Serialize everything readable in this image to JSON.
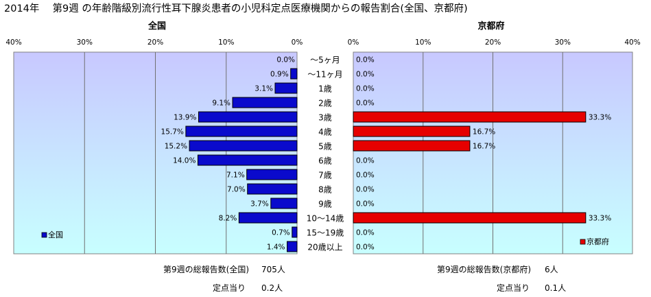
{
  "title": "2014年　 第9週 の年齢階級別流行性耳下腺炎患者の小児科定点医療機関からの報告割合(全国、京都府)",
  "colors": {
    "national_bar": "#0a0acc",
    "kyoto_bar": "#e60000",
    "plot_top": "#c8c8ff",
    "plot_bottom": "#c8ffff"
  },
  "chart_data": [
    {
      "type": "bar",
      "orientation": "horizontal",
      "direction": "right-to-left",
      "panel_title": "全国",
      "legend": "全国",
      "legend_placement": "bottom-left",
      "xlim": [
        0,
        40
      ],
      "ticks": [
        "40%",
        "30%",
        "20%",
        "10%",
        "0%"
      ],
      "grid": true,
      "categories": [
        "～5ヶ月",
        "～11ヶ月",
        "1歳",
        "2歳",
        "3歳",
        "4歳",
        "5歳",
        "6歳",
        "7歳",
        "8歳",
        "9歳",
        "10～14歳",
        "15～19歳",
        "20歳以上"
      ],
      "values": [
        0.0,
        0.9,
        3.1,
        9.1,
        13.9,
        15.7,
        15.2,
        14.0,
        7.1,
        7.0,
        3.7,
        8.2,
        0.7,
        1.4
      ],
      "labels": [
        "0.0%",
        "0.9%",
        "3.1%",
        "9.1%",
        "13.9%",
        "15.7%",
        "15.2%",
        "14.0%",
        "7.1%",
        "7.0%",
        "3.7%",
        "8.2%",
        "0.7%",
        "1.4%"
      ]
    },
    {
      "type": "bar",
      "orientation": "horizontal",
      "direction": "left-to-right",
      "panel_title": "京都府",
      "legend": "京都府",
      "legend_placement": "bottom-right",
      "xlim": [
        0,
        40
      ],
      "ticks": [
        "0%",
        "10%",
        "20%",
        "30%",
        "40%"
      ],
      "grid": true,
      "categories": [
        "～5ヶ月",
        "～11ヶ月",
        "1歳",
        "2歳",
        "3歳",
        "4歳",
        "5歳",
        "6歳",
        "7歳",
        "8歳",
        "9歳",
        "10～14歳",
        "15～19歳",
        "20歳以上"
      ],
      "values": [
        0.0,
        0.0,
        0.0,
        0.0,
        33.3,
        16.7,
        16.7,
        0.0,
        0.0,
        0.0,
        0.0,
        33.3,
        0.0,
        0.0
      ],
      "labels": [
        "0.0%",
        "0.0%",
        "0.0%",
        "0.0%",
        "33.3%",
        "16.7%",
        "16.7%",
        "0.0%",
        "0.0%",
        "0.0%",
        "0.0%",
        "33.3%",
        "0.0%",
        "0.0%"
      ]
    }
  ],
  "summary": {
    "national": {
      "total_label": "第9週の総報告数(全国)",
      "total_value": "705人",
      "per_label": "定点当り",
      "per_value": "0.2人"
    },
    "kyoto": {
      "total_label": "第9週の総報告数(京都府)",
      "total_value": "6人",
      "per_label": "定点当り",
      "per_value": "0.1人"
    }
  }
}
